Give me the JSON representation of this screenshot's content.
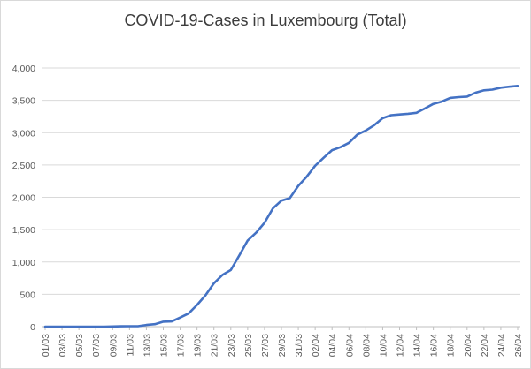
{
  "chart_data": {
    "type": "line",
    "title": "COVID-19-Cases in Luxembourg (Total)",
    "xlabel": "",
    "ylabel": "",
    "ylim": [
      0,
      4000
    ],
    "yticks": [
      "0",
      "500",
      "1,000",
      "1,500",
      "2,000",
      "2,500",
      "3,000",
      "3,500",
      "4,000"
    ],
    "ytick_values": [
      0,
      500,
      1000,
      1500,
      2000,
      2500,
      3000,
      3500,
      4000
    ],
    "xticks": [
      "01/03",
      "03/03",
      "05/03",
      "07/03",
      "09/03",
      "11/03",
      "13/03",
      "15/03",
      "17/03",
      "19/03",
      "21/03",
      "23/03",
      "25/03",
      "27/03",
      "29/03",
      "31/03",
      "02/04",
      "04/04",
      "06/04",
      "08/04",
      "10/04",
      "12/04",
      "14/04",
      "16/04",
      "18/04",
      "20/04",
      "22/04",
      "24/04",
      "26/04"
    ],
    "grid": true,
    "legend": "none",
    "series": [
      {
        "color": "#4472c4",
        "x": [
          "01/03",
          "02/03",
          "03/03",
          "04/03",
          "05/03",
          "06/03",
          "07/03",
          "08/03",
          "09/03",
          "10/03",
          "11/03",
          "12/03",
          "13/03",
          "14/03",
          "15/03",
          "16/03",
          "17/03",
          "18/03",
          "19/03",
          "20/03",
          "21/03",
          "22/03",
          "23/03",
          "24/03",
          "25/03",
          "26/03",
          "27/03",
          "28/03",
          "29/03",
          "30/03",
          "31/03",
          "01/04",
          "02/04",
          "03/04",
          "04/04",
          "05/04",
          "06/04",
          "07/04",
          "08/04",
          "09/04",
          "10/04",
          "11/04",
          "12/04",
          "13/04",
          "14/04",
          "15/04",
          "16/04",
          "17/04",
          "18/04",
          "19/04",
          "20/04",
          "21/04",
          "22/04",
          "23/04",
          "24/04",
          "25/04",
          "26/04"
        ],
        "values": [
          0,
          0,
          0,
          0,
          0,
          0,
          0,
          0,
          3,
          5,
          7,
          7,
          26,
          38,
          77,
          81,
          140,
          203,
          335,
          484,
          670,
          798,
          875,
          1099,
          1333,
          1453,
          1605,
          1831,
          1950,
          1988,
          2178,
          2319,
          2487,
          2612,
          2729,
          2776,
          2843,
          2970,
          3034,
          3115,
          3223,
          3270,
          3281,
          3292,
          3307,
          3373,
          3444,
          3480,
          3537,
          3550,
          3558,
          3618,
          3654,
          3665,
          3695,
          3711,
          3723
        ]
      }
    ]
  }
}
